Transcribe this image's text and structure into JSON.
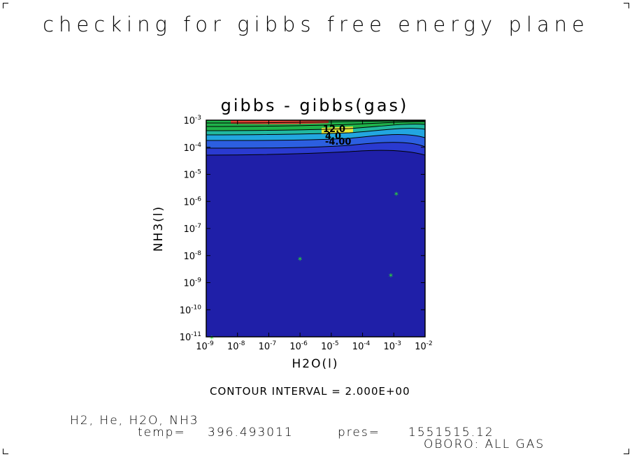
{
  "page_title": "checking for gibbs free energy plane",
  "chart_data": {
    "type": "heatmap",
    "title": "gibbs - gibbs(gas)",
    "xlabel": "H2O(l)",
    "ylabel": "NH3(l)",
    "x_scale": "log",
    "y_scale": "log",
    "xlim": [
      1e-09,
      0.01
    ],
    "ylim": [
      1e-11,
      0.001
    ],
    "x_ticks": [
      {
        "base": "10",
        "exp": "-9"
      },
      {
        "base": "10",
        "exp": "-8"
      },
      {
        "base": "10",
        "exp": "-7"
      },
      {
        "base": "10",
        "exp": "-6"
      },
      {
        "base": "10",
        "exp": "-5"
      },
      {
        "base": "10",
        "exp": "-4"
      },
      {
        "base": "10",
        "exp": "-3"
      },
      {
        "base": "10",
        "exp": "-2"
      }
    ],
    "y_ticks": [
      {
        "base": "10",
        "exp": "-11"
      },
      {
        "base": "10",
        "exp": "-10"
      },
      {
        "base": "10",
        "exp": "-9"
      },
      {
        "base": "10",
        "exp": "-8"
      },
      {
        "base": "10",
        "exp": "-7"
      },
      {
        "base": "10",
        "exp": "-6"
      },
      {
        "base": "10",
        "exp": "-5"
      },
      {
        "base": "10",
        "exp": "-4"
      },
      {
        "base": "10",
        "exp": "-3"
      }
    ],
    "contour_labels": [
      "-4.00",
      "12.0",
      "4.0"
    ],
    "markers": [
      {
        "x": 1.5e-09,
        "y": 1e-11
      },
      {
        "x": 1e-06,
        "y": 8e-09
      },
      {
        "x": 0.0008,
        "y": 2e-09
      },
      {
        "x": 0.0012,
        "y": 2e-06
      }
    ],
    "colors": {
      "background_fill": "#1f1fa8",
      "deep_band": "#2a3ad0",
      "cyan_band": "#22a6e0",
      "green_band": "#1fb24a",
      "yellow_band": "#e8ea3a",
      "marker": "#2ee82e"
    },
    "contour_interval_note": "CONTOUR INTERVAL = 2.000E+00"
  },
  "footer": {
    "species": "H2, He, H2O, NH3",
    "temp_label": "temp=",
    "temp_value": "396.493011",
    "pres_label": "pres=",
    "pres_value": "1551515.12",
    "run_label": "OBORO: ALL GAS"
  }
}
